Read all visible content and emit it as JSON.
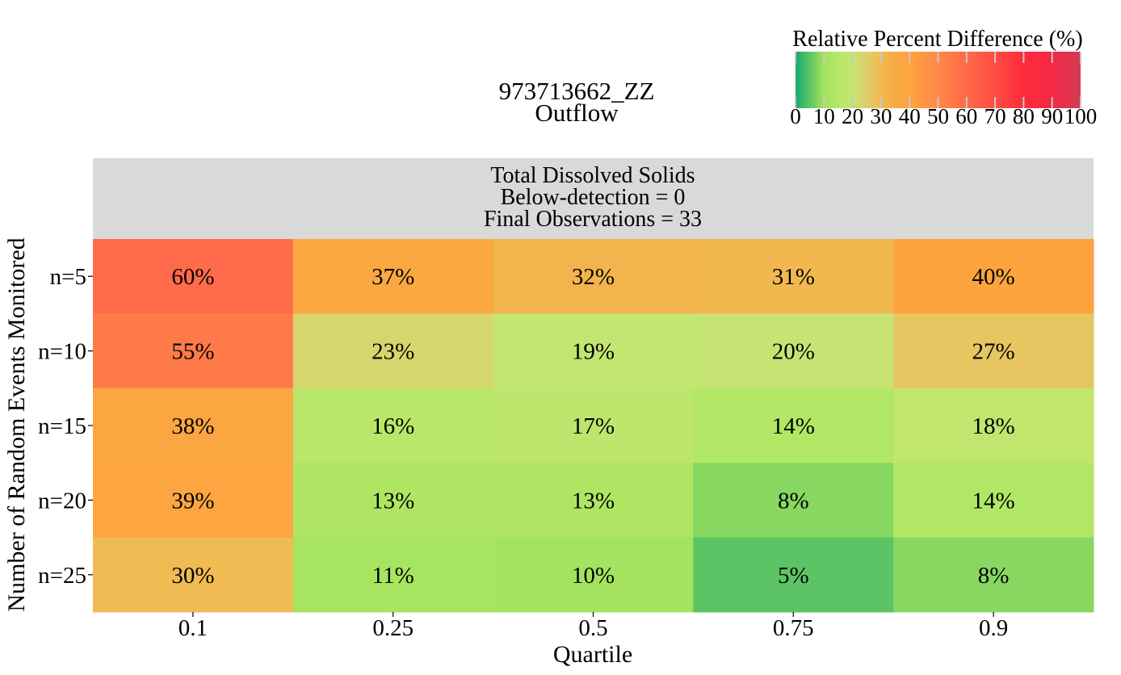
{
  "title_line1": "973713662_ZZ",
  "title_line2": "Outflow",
  "panel": {
    "line1": "Total Dissolved Solids",
    "line2": "Below-detection = 0",
    "line3": "Final Observations = 33"
  },
  "colorbar": {
    "title": "Relative Percent Difference (%)",
    "ticks": [
      0,
      10,
      20,
      30,
      40,
      50,
      60,
      70,
      80,
      90,
      100
    ],
    "stops": [
      {
        "v": 0,
        "c": "#1aa874"
      },
      {
        "v": 5,
        "c": "#5dc465"
      },
      {
        "v": 10,
        "c": "#a3e35f"
      },
      {
        "v": 15,
        "c": "#b6e866"
      },
      {
        "v": 20,
        "c": "#c6e474"
      },
      {
        "v": 25,
        "c": "#e0cd69"
      },
      {
        "v": 30,
        "c": "#f0bb52"
      },
      {
        "v": 35,
        "c": "#f9aa45"
      },
      {
        "v": 40,
        "c": "#fea43f"
      },
      {
        "v": 50,
        "c": "#ff8848"
      },
      {
        "v": 60,
        "c": "#ff6b4a"
      },
      {
        "v": 70,
        "c": "#ff4c42"
      },
      {
        "v": 80,
        "c": "#ff2b3a"
      },
      {
        "v": 90,
        "c": "#f52845"
      },
      {
        "v": 100,
        "c": "#d33b54"
      }
    ]
  },
  "chart_data": {
    "type": "heatmap",
    "xlabel": "Quartile",
    "ylabel": "Number of Random Events Monitored",
    "x_categories": [
      "0.1",
      "0.25",
      "0.5",
      "0.75",
      "0.9"
    ],
    "y_categories": [
      "n=5",
      "n=10",
      "n=15",
      "n=20",
      "n=25"
    ],
    "values": [
      [
        60,
        37,
        32,
        31,
        40
      ],
      [
        55,
        23,
        19,
        20,
        27
      ],
      [
        38,
        16,
        17,
        14,
        18
      ],
      [
        39,
        13,
        13,
        8,
        14
      ],
      [
        30,
        11,
        10,
        5,
        8
      ]
    ],
    "cell_label_suffix": "%",
    "value_range": [
      0,
      100
    ]
  }
}
